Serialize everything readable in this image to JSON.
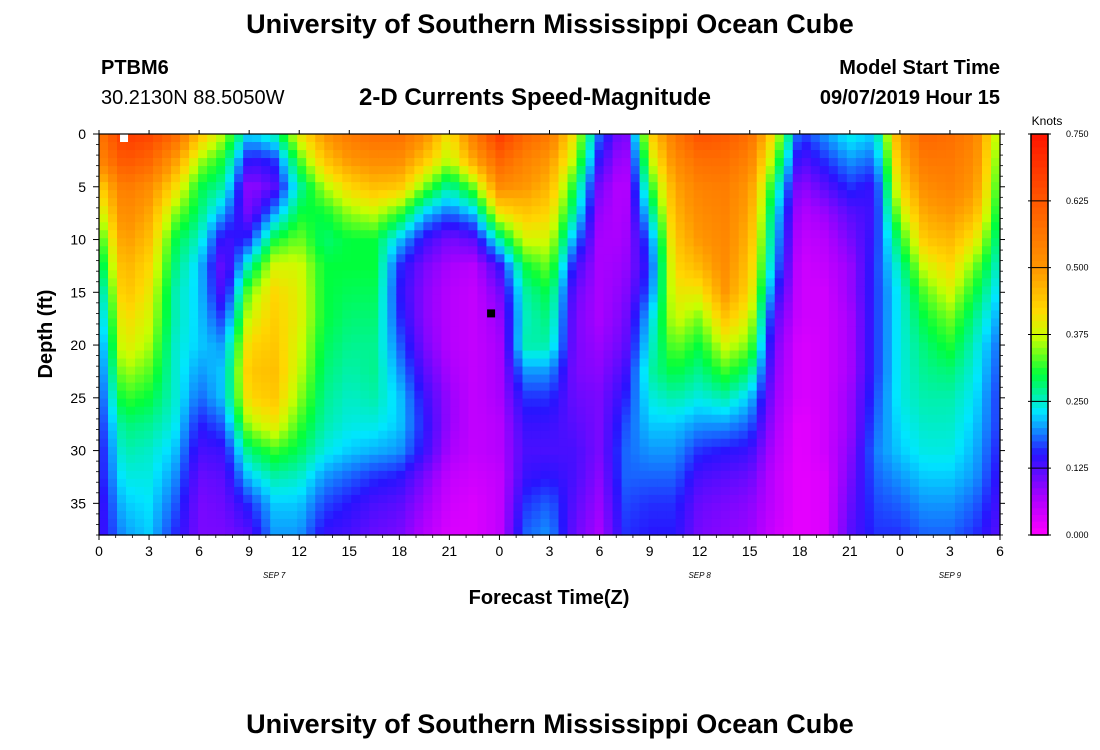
{
  "page": {
    "title_top": "University of Southern Mississippi Ocean Cube",
    "title_bottom": "University of Southern Mississippi Ocean Cube",
    "station_id": "PTBM6",
    "station_coords": "30.2130N 88.5050W",
    "model_start_label": "Model Start Time",
    "model_start_value": "09/07/2019 Hour 15"
  },
  "chart_data": {
    "type": "heatmap",
    "title": "2-D Currents Speed-Magnitude",
    "xlabel": "Forecast Time(Z)",
    "ylabel": "Depth (ft)",
    "x_range_hours": [
      0,
      54
    ],
    "y_range_ft": [
      0,
      38
    ],
    "y_inverted": true,
    "x_ticks": [
      "0",
      "3",
      "6",
      "9",
      "12",
      "15",
      "18",
      "21",
      "0",
      "3",
      "6",
      "9",
      "12",
      "15",
      "18",
      "21",
      "0",
      "3",
      "6"
    ],
    "y_ticks": [
      0,
      5,
      10,
      15,
      20,
      25,
      30,
      35
    ],
    "date_labels": [
      {
        "hour": 10.5,
        "text": "SEP 7"
      },
      {
        "hour": 36,
        "text": "SEP 8"
      },
      {
        "hour": 51,
        "text": "SEP 9"
      }
    ],
    "colorbar": {
      "label": "Knots",
      "range": [
        0,
        0.75
      ],
      "ticks": [
        "0.750",
        "0.625",
        "0.500",
        "0.375",
        "0.250",
        "0.125",
        "0.000"
      ]
    },
    "markers": [
      {
        "hour": 1.5,
        "depth": 0,
        "color": "#ffffff"
      },
      {
        "hour": 23.5,
        "depth": 17,
        "color": "#000000"
      }
    ],
    "depths": [
      0,
      2.5,
      5,
      7.5,
      10,
      12.5,
      15,
      17.5,
      20,
      22.5,
      25,
      27.5,
      30,
      32.5,
      35,
      38
    ],
    "columns": [
      {
        "hour": 0,
        "speeds": [
          0.56,
          0.53,
          0.42,
          0.36,
          0.3,
          0.26,
          0.22,
          0.2,
          0.18,
          0.17,
          0.16,
          0.15,
          0.14,
          0.14,
          0.13,
          0.13
        ]
      },
      {
        "hour": 1.5,
        "speeds": [
          0.68,
          0.63,
          0.56,
          0.53,
          0.5,
          0.47,
          0.45,
          0.42,
          0.4,
          0.36,
          0.32,
          0.28,
          0.26,
          0.24,
          0.22,
          0.2
        ]
      },
      {
        "hour": 3,
        "speeds": [
          0.66,
          0.6,
          0.52,
          0.48,
          0.45,
          0.42,
          0.4,
          0.38,
          0.36,
          0.33,
          0.3,
          0.27,
          0.25,
          0.24,
          0.23,
          0.22
        ]
      },
      {
        "hour": 4.5,
        "speeds": [
          0.6,
          0.5,
          0.42,
          0.35,
          0.3,
          0.28,
          0.26,
          0.26,
          0.25,
          0.25,
          0.25,
          0.24,
          0.22,
          0.2,
          0.18,
          0.16
        ]
      },
      {
        "hour": 6,
        "speeds": [
          0.45,
          0.36,
          0.3,
          0.28,
          0.25,
          0.22,
          0.22,
          0.22,
          0.22,
          0.2,
          0.18,
          0.15,
          0.13,
          0.11,
          0.1,
          0.1
        ]
      },
      {
        "hour": 7.5,
        "speeds": [
          0.36,
          0.3,
          0.26,
          0.2,
          0.13,
          0.1,
          0.12,
          0.16,
          0.2,
          0.22,
          0.22,
          0.18,
          0.14,
          0.12,
          0.11,
          0.1
        ]
      },
      {
        "hour": 9,
        "speeds": [
          0.22,
          0.14,
          0.08,
          0.1,
          0.16,
          0.26,
          0.34,
          0.38,
          0.42,
          0.44,
          0.42,
          0.36,
          0.28,
          0.22,
          0.16,
          0.12
        ]
      },
      {
        "hour": 10.5,
        "speeds": [
          0.26,
          0.16,
          0.12,
          0.2,
          0.3,
          0.38,
          0.42,
          0.43,
          0.44,
          0.45,
          0.44,
          0.4,
          0.32,
          0.26,
          0.22,
          0.2
        ]
      },
      {
        "hour": 12,
        "speeds": [
          0.4,
          0.32,
          0.26,
          0.3,
          0.34,
          0.38,
          0.39,
          0.39,
          0.38,
          0.37,
          0.35,
          0.32,
          0.29,
          0.25,
          0.22,
          0.2
        ]
      },
      {
        "hour": 13.5,
        "speeds": [
          0.5,
          0.44,
          0.36,
          0.3,
          0.28,
          0.3,
          0.3,
          0.3,
          0.29,
          0.28,
          0.27,
          0.26,
          0.24,
          0.2,
          0.17,
          0.14
        ]
      },
      {
        "hour": 15,
        "speeds": [
          0.56,
          0.5,
          0.42,
          0.35,
          0.3,
          0.3,
          0.29,
          0.28,
          0.27,
          0.26,
          0.25,
          0.24,
          0.22,
          0.18,
          0.15,
          0.13
        ]
      },
      {
        "hour": 16.5,
        "speeds": [
          0.58,
          0.52,
          0.45,
          0.37,
          0.3,
          0.3,
          0.29,
          0.28,
          0.27,
          0.27,
          0.26,
          0.24,
          0.21,
          0.16,
          0.13,
          0.11
        ]
      },
      {
        "hour": 18,
        "speeds": [
          0.58,
          0.52,
          0.44,
          0.32,
          0.22,
          0.16,
          0.15,
          0.16,
          0.18,
          0.2,
          0.22,
          0.22,
          0.2,
          0.15,
          0.12,
          0.1
        ]
      },
      {
        "hour": 19.5,
        "speeds": [
          0.52,
          0.44,
          0.34,
          0.22,
          0.14,
          0.1,
          0.09,
          0.09,
          0.1,
          0.12,
          0.14,
          0.15,
          0.14,
          0.1,
          0.08,
          0.06
        ]
      },
      {
        "hour": 21,
        "speeds": [
          0.4,
          0.36,
          0.26,
          0.18,
          0.1,
          0.07,
          0.06,
          0.06,
          0.06,
          0.07,
          0.08,
          0.08,
          0.07,
          0.05,
          0.04,
          0.03
        ]
      },
      {
        "hour": 22.5,
        "speeds": [
          0.56,
          0.48,
          0.34,
          0.22,
          0.12,
          0.06,
          0.05,
          0.05,
          0.05,
          0.05,
          0.05,
          0.05,
          0.05,
          0.04,
          0.03,
          0.03
        ]
      },
      {
        "hour": 24,
        "speeds": [
          0.68,
          0.6,
          0.52,
          0.4,
          0.26,
          0.14,
          0.1,
          0.08,
          0.07,
          0.07,
          0.07,
          0.06,
          0.06,
          0.05,
          0.05,
          0.05
        ]
      },
      {
        "hour": 25.5,
        "speeds": [
          0.6,
          0.54,
          0.5,
          0.44,
          0.38,
          0.3,
          0.26,
          0.25,
          0.26,
          0.2,
          0.16,
          0.14,
          0.13,
          0.14,
          0.16,
          0.18
        ]
      },
      {
        "hour": 27,
        "speeds": [
          0.56,
          0.5,
          0.46,
          0.42,
          0.38,
          0.34,
          0.3,
          0.28,
          0.26,
          0.2,
          0.16,
          0.14,
          0.13,
          0.15,
          0.18,
          0.2
        ]
      },
      {
        "hour": 28.5,
        "speeds": [
          0.4,
          0.36,
          0.3,
          0.26,
          0.2,
          0.14,
          0.11,
          0.1,
          0.1,
          0.1,
          0.11,
          0.12,
          0.13,
          0.13,
          0.12,
          0.11
        ]
      },
      {
        "hour": 30,
        "speeds": [
          0.18,
          0.14,
          0.1,
          0.08,
          0.07,
          0.07,
          0.07,
          0.07,
          0.08,
          0.09,
          0.1,
          0.1,
          0.1,
          0.09,
          0.08,
          0.07
        ]
      },
      {
        "hour": 31.5,
        "speeds": [
          0.08,
          0.06,
          0.05,
          0.06,
          0.07,
          0.08,
          0.09,
          0.1,
          0.11,
          0.13,
          0.15,
          0.17,
          0.18,
          0.18,
          0.17,
          0.16
        ]
      },
      {
        "hour": 33,
        "speeds": [
          0.42,
          0.36,
          0.3,
          0.24,
          0.18,
          0.16,
          0.18,
          0.22,
          0.24,
          0.26,
          0.24,
          0.22,
          0.2,
          0.18,
          0.16,
          0.15
        ]
      },
      {
        "hour": 34.5,
        "speeds": [
          0.56,
          0.52,
          0.48,
          0.46,
          0.44,
          0.42,
          0.4,
          0.38,
          0.34,
          0.3,
          0.26,
          0.22,
          0.2,
          0.18,
          0.16,
          0.15
        ]
      },
      {
        "hour": 36,
        "speeds": [
          0.64,
          0.58,
          0.54,
          0.52,
          0.5,
          0.46,
          0.4,
          0.34,
          0.3,
          0.27,
          0.24,
          0.2,
          0.16,
          0.13,
          0.11,
          0.1
        ]
      },
      {
        "hour": 37.5,
        "speeds": [
          0.62,
          0.58,
          0.55,
          0.54,
          0.53,
          0.52,
          0.5,
          0.44,
          0.38,
          0.32,
          0.26,
          0.2,
          0.15,
          0.12,
          0.1,
          0.09
        ]
      },
      {
        "hour": 39,
        "speeds": [
          0.58,
          0.54,
          0.5,
          0.48,
          0.46,
          0.44,
          0.42,
          0.38,
          0.34,
          0.28,
          0.22,
          0.18,
          0.14,
          0.11,
          0.09,
          0.08
        ]
      },
      {
        "hour": 40.5,
        "speeds": [
          0.4,
          0.34,
          0.28,
          0.24,
          0.22,
          0.2,
          0.16,
          0.12,
          0.1,
          0.09,
          0.08,
          0.07,
          0.06,
          0.05,
          0.05,
          0.04
        ]
      },
      {
        "hour": 42,
        "speeds": [
          0.16,
          0.12,
          0.08,
          0.06,
          0.05,
          0.04,
          0.04,
          0.04,
          0.03,
          0.03,
          0.03,
          0.02,
          0.02,
          0.02,
          0.02,
          0.02
        ]
      },
      {
        "hour": 43.5,
        "speeds": [
          0.2,
          0.16,
          0.12,
          0.08,
          0.06,
          0.05,
          0.04,
          0.04,
          0.04,
          0.04,
          0.04,
          0.04,
          0.04,
          0.03,
          0.03,
          0.03
        ]
      },
      {
        "hour": 45,
        "speeds": [
          0.24,
          0.2,
          0.16,
          0.12,
          0.1,
          0.08,
          0.08,
          0.07,
          0.07,
          0.07,
          0.08,
          0.08,
          0.09,
          0.1,
          0.11,
          0.12
        ]
      },
      {
        "hour": 46.5,
        "speeds": [
          0.22,
          0.18,
          0.14,
          0.14,
          0.15,
          0.16,
          0.16,
          0.16,
          0.16,
          0.16,
          0.17,
          0.18,
          0.19,
          0.18,
          0.17,
          0.16
        ]
      },
      {
        "hour": 48,
        "speeds": [
          0.5,
          0.46,
          0.42,
          0.36,
          0.3,
          0.26,
          0.24,
          0.24,
          0.24,
          0.24,
          0.24,
          0.23,
          0.22,
          0.2,
          0.18,
          0.16
        ]
      },
      {
        "hour": 49.5,
        "speeds": [
          0.6,
          0.56,
          0.52,
          0.48,
          0.44,
          0.38,
          0.33,
          0.3,
          0.28,
          0.27,
          0.26,
          0.25,
          0.24,
          0.22,
          0.2,
          0.18
        ]
      },
      {
        "hour": 51,
        "speeds": [
          0.58,
          0.56,
          0.54,
          0.5,
          0.46,
          0.42,
          0.38,
          0.34,
          0.31,
          0.28,
          0.26,
          0.25,
          0.24,
          0.22,
          0.2,
          0.18
        ]
      },
      {
        "hour": 52.5,
        "speeds": [
          0.54,
          0.52,
          0.5,
          0.46,
          0.4,
          0.34,
          0.3,
          0.27,
          0.25,
          0.24,
          0.23,
          0.22,
          0.21,
          0.2,
          0.18,
          0.16
        ]
      },
      {
        "hour": 54,
        "speeds": [
          0.34,
          0.32,
          0.3,
          0.28,
          0.26,
          0.24,
          0.22,
          0.2,
          0.18,
          0.17,
          0.16,
          0.16,
          0.15,
          0.14,
          0.13,
          0.12
        ]
      }
    ]
  }
}
